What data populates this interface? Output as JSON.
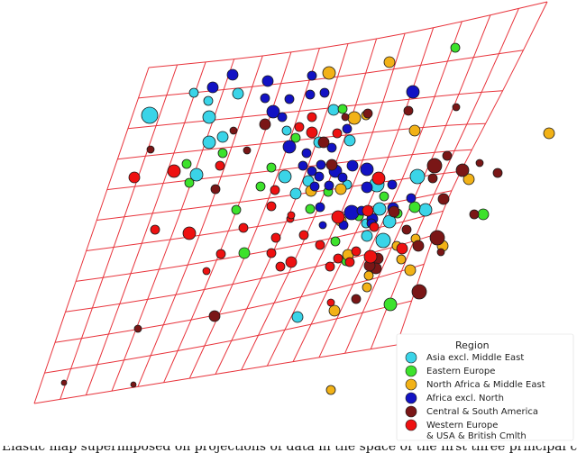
{
  "chart_data": {
    "type": "scatter",
    "subtype": "principal manifold (elastic map grid) over scatter of regions",
    "grid_color": "#e8343c",
    "legend": {
      "title": "Region",
      "placement": "bottom-right",
      "entries": [
        {
          "label": "Asia excl. Middle East",
          "color": "#3ad4e8"
        },
        {
          "label": "Eastern Europe",
          "color": "#3de22c"
        },
        {
          "label": "North Africa & Middle East",
          "color": "#f2b217"
        },
        {
          "label": "Africa excl. North",
          "color": "#1212c4"
        },
        {
          "label": "Central & South America",
          "color": "#7a1616"
        },
        {
          "label": "Western Europe",
          "label2": "& USA & British Cmlth",
          "color": "#ee1111"
        }
      ]
    },
    "series": [
      {
        "key": "asia",
        "points": [
          [
            166,
            128,
            9
          ],
          [
            232,
            130,
            7
          ],
          [
            264,
            104,
            6
          ],
          [
            215,
            103,
            5
          ],
          [
            232,
            158,
            7
          ],
          [
            247,
            152,
            6
          ],
          [
            231,
            112,
            5
          ],
          [
            218,
            194,
            7
          ],
          [
            318,
            145,
            5
          ],
          [
            370,
            122,
            6
          ],
          [
            354,
            158,
            6
          ],
          [
            316,
            196,
            7
          ],
          [
            328,
            215,
            6
          ],
          [
            342,
            201,
            6
          ],
          [
            385,
            205,
            5
          ],
          [
            388,
            156,
            6
          ],
          [
            418,
            205,
            8
          ],
          [
            463,
            196,
            8
          ],
          [
            421,
            232,
            7
          ],
          [
            432,
            246,
            7
          ],
          [
            425,
            267,
            8
          ],
          [
            472,
            233,
            7
          ],
          [
            330,
            352,
            6
          ],
          [
            407,
            262,
            6
          ],
          [
            406,
            248,
            5
          ]
        ]
      },
      {
        "key": "eastern_europe",
        "points": [
          [
            505,
            53,
            5
          ],
          [
            207,
            182,
            5
          ],
          [
            210,
            203,
            5
          ],
          [
            247,
            170,
            5
          ],
          [
            301,
            186,
            5
          ],
          [
            289,
            207,
            5
          ],
          [
            262,
            233,
            5
          ],
          [
            271,
            281,
            6
          ],
          [
            384,
            290,
            5
          ],
          [
            433,
            338,
            7
          ],
          [
            460,
            230,
            6
          ],
          [
            441,
            237,
            5
          ],
          [
            536,
            238,
            6
          ],
          [
            344,
            232,
            5
          ],
          [
            364,
            213,
            5
          ],
          [
            398,
            240,
            5
          ],
          [
            372,
            268,
            5
          ],
          [
            328,
            153,
            5
          ],
          [
            426,
            218,
            5
          ],
          [
            380,
            121,
            5
          ]
        ]
      },
      {
        "key": "north_africa",
        "points": [
          [
            365,
            81,
            7
          ],
          [
            432,
            69,
            6
          ],
          [
            393,
            131,
            7
          ],
          [
            406,
            128,
            5
          ],
          [
            460,
            145,
            6
          ],
          [
            345,
            212,
            6
          ],
          [
            378,
            210,
            6
          ],
          [
            378,
            245,
            6
          ],
          [
            386,
            283,
            6
          ],
          [
            445,
            288,
            5
          ],
          [
            455,
            300,
            6
          ],
          [
            440,
            273,
            5
          ],
          [
            520,
            199,
            6
          ],
          [
            407,
            319,
            5
          ],
          [
            371,
            345,
            6
          ],
          [
            367,
            433,
            5
          ],
          [
            609,
            148,
            6
          ],
          [
            491,
            273,
            6
          ],
          [
            461,
            265,
            5
          ],
          [
            409,
            306,
            5
          ]
        ]
      },
      {
        "key": "africa",
        "points": [
          [
            258,
            83,
            6
          ],
          [
            236,
            97,
            6
          ],
          [
            297,
            90,
            6
          ],
          [
            294,
            109,
            5
          ],
          [
            303,
            124,
            7
          ],
          [
            313,
            130,
            5
          ],
          [
            321,
            110,
            5
          ],
          [
            344,
            105,
            5
          ],
          [
            346,
            84,
            5
          ],
          [
            360,
            103,
            5
          ],
          [
            458,
            102,
            7
          ],
          [
            321,
            163,
            7
          ],
          [
            340,
            170,
            5
          ],
          [
            356,
            183,
            5
          ],
          [
            346,
            190,
            5
          ],
          [
            372,
            190,
            7
          ],
          [
            391,
            184,
            6
          ],
          [
            407,
            188,
            7
          ],
          [
            354,
            196,
            5
          ],
          [
            365,
            206,
            5
          ],
          [
            380,
            197,
            5
          ],
          [
            390,
            236,
            8
          ],
          [
            401,
            234,
            5
          ],
          [
            413,
            243,
            6
          ],
          [
            381,
            250,
            5
          ],
          [
            358,
            250,
            4
          ],
          [
            407,
            208,
            6
          ],
          [
            368,
            164,
            5
          ],
          [
            435,
            205,
            5
          ],
          [
            456,
            220,
            5
          ],
          [
            336,
            184,
            5
          ],
          [
            385,
            143,
            5
          ],
          [
            349,
            207,
            5
          ],
          [
            355,
            230,
            5
          ],
          [
            412,
            248,
            5
          ],
          [
            436,
            231,
            6
          ]
        ]
      },
      {
        "key": "central_south_america",
        "points": [
          [
            294,
            138,
            6
          ],
          [
            359,
            158,
            6
          ],
          [
            368,
            183,
            6
          ],
          [
            408,
            126,
            5
          ],
          [
            453,
            123,
            5
          ],
          [
            482,
            184,
            8
          ],
          [
            496,
            173,
            5
          ],
          [
            513,
            189,
            7
          ],
          [
            552,
            192,
            5
          ],
          [
            492,
            221,
            6
          ],
          [
            506,
            119,
            4
          ],
          [
            532,
            181,
            4
          ],
          [
            419,
            287,
            6
          ],
          [
            437,
            235,
            6
          ],
          [
            485,
            264,
            8
          ],
          [
            489,
            280,
            4
          ],
          [
            417,
            298,
            6
          ],
          [
            395,
            332,
            5
          ],
          [
            238,
            351,
            6
          ],
          [
            259,
            145,
            4
          ],
          [
            167,
            166,
            4
          ],
          [
            274,
            167,
            4
          ],
          [
            239,
            210,
            5
          ],
          [
            153,
            365,
            4
          ],
          [
            148,
            427,
            3
          ],
          [
            71,
            425,
            3
          ],
          [
            526,
            238,
            5
          ],
          [
            383,
            130,
            4
          ],
          [
            451,
            255,
            5
          ],
          [
            480,
            198,
            5
          ],
          [
            464,
            273,
            6
          ],
          [
            410,
            295,
            6
          ],
          [
            465,
            324,
            8
          ]
        ]
      },
      {
        "key": "western_europe",
        "points": [
          [
            149,
            197,
            6
          ],
          [
            193,
            190,
            7
          ],
          [
            210,
            259,
            7
          ],
          [
            172,
            255,
            5
          ],
          [
            244,
            184,
            5
          ],
          [
            229,
            301,
            4
          ],
          [
            270,
            253,
            5
          ],
          [
            301,
            281,
            5
          ],
          [
            311,
            296,
            5
          ],
          [
            323,
            291,
            6
          ],
          [
            337,
            261,
            5
          ],
          [
            306,
            264,
            5
          ],
          [
            355,
            272,
            5
          ],
          [
            366,
            296,
            5
          ],
          [
            395,
            279,
            5
          ],
          [
            411,
            285,
            7
          ],
          [
            446,
            276,
            6
          ],
          [
            301,
            229,
            5
          ],
          [
            305,
            211,
            5
          ],
          [
            322,
            243,
            4
          ],
          [
            332,
            141,
            5
          ],
          [
            346,
            147,
            6
          ],
          [
            346,
            130,
            5
          ],
          [
            374,
            148,
            5
          ],
          [
            375,
            241,
            7
          ],
          [
            420,
            198,
            7
          ],
          [
            415,
            252,
            5
          ],
          [
            408,
            234,
            6
          ],
          [
            323,
            239,
            4
          ],
          [
            388,
            291,
            5
          ],
          [
            367,
            336,
            4
          ],
          [
            245,
            282,
            5
          ],
          [
            375,
            287,
            5
          ]
        ]
      }
    ],
    "point_colors_by_series": {
      "asia": "#3ad4e8",
      "eastern_europe": "#3de22c",
      "north_africa": "#f2b217",
      "africa": "#1212c4",
      "central_south_america": "#7a1616",
      "western_europe": "#ee1111"
    }
  },
  "caption": "Elastic map superimposed on projections of data in the space of the first three principal components"
}
